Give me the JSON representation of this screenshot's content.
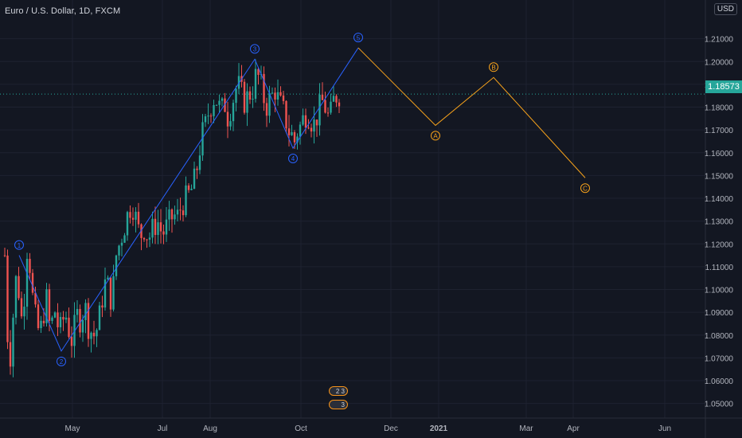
{
  "header": {
    "symbol_title": "Euro / U.S. Dollar, 1D, FXCM",
    "currency": "USD"
  },
  "price": {
    "last": "1.18573",
    "last_value": 1.18573
  },
  "events": {
    "icon1_label": "2 3",
    "icon2_label": "3"
  },
  "colors": {
    "background": "#131722",
    "grid": "#1e2230",
    "up": "#26a69a",
    "down": "#ef5350",
    "impulse_wave": "#2962ff",
    "corrective_wave": "#f7a21b",
    "axis_text": "#b2b5be"
  },
  "chart_data": {
    "type": "candlestick",
    "title": "Euro / U.S. Dollar, 1D, FXCM",
    "x_ticks": [
      "May",
      "Jul",
      "Aug",
      "Oct",
      "Dec",
      "2021",
      "Mar",
      "Apr",
      "Jun"
    ],
    "y_ticks": [
      "1.05000",
      "1.06000",
      "1.07000",
      "1.08000",
      "1.09000",
      "1.10000",
      "1.11000",
      "1.12000",
      "1.13000",
      "1.14000",
      "1.15000",
      "1.16000",
      "1.17000",
      "1.18000",
      "1.19000",
      "1.20000",
      "1.21000"
    ],
    "ylim": [
      1.045,
      1.22
    ],
    "last_price_line": 1.18573,
    "price_path": [
      [
        0,
        1.115
      ],
      [
        4,
        1.075
      ],
      [
        8,
        1.07
      ],
      [
        12,
        1.1
      ],
      [
        16,
        1.108
      ],
      [
        20,
        1.085
      ],
      [
        24,
        1.095
      ],
      [
        28,
        1.118
      ],
      [
        32,
        1.11
      ],
      [
        36,
        1.092
      ],
      [
        40,
        1.085
      ],
      [
        44,
        1.08
      ],
      [
        48,
        1.088
      ],
      [
        52,
        1.097
      ],
      [
        56,
        1.085
      ],
      [
        60,
        1.086
      ],
      [
        64,
        1.092
      ],
      [
        68,
        1.08
      ],
      [
        72,
        1.085
      ],
      [
        76,
        1.09
      ],
      [
        80,
        1.083
      ],
      [
        84,
        1.078
      ],
      [
        88,
        1.084
      ],
      [
        92,
        1.09
      ],
      [
        96,
        1.085
      ],
      [
        100,
        1.095
      ],
      [
        104,
        1.085
      ],
      [
        108,
        1.082
      ],
      [
        112,
        1.08
      ],
      [
        116,
        1.083
      ],
      [
        120,
        1.09
      ],
      [
        124,
        1.1
      ],
      [
        128,
        1.105
      ],
      [
        132,
        1.095
      ],
      [
        136,
        1.1
      ],
      [
        140,
        1.115
      ],
      [
        144,
        1.12
      ],
      [
        148,
        1.125
      ],
      [
        152,
        1.13
      ],
      [
        156,
        1.135
      ],
      [
        160,
        1.138
      ],
      [
        164,
        1.132
      ],
      [
        168,
        1.126
      ],
      [
        172,
        1.124
      ],
      [
        176,
        1.128
      ],
      [
        180,
        1.122
      ],
      [
        184,
        1.125
      ],
      [
        188,
        1.128
      ],
      [
        192,
        1.13
      ],
      [
        196,
        1.126
      ],
      [
        200,
        1.125
      ],
      [
        204,
        1.128
      ],
      [
        208,
        1.13
      ],
      [
        212,
        1.133
      ],
      [
        216,
        1.131
      ],
      [
        220,
        1.135
      ],
      [
        224,
        1.138
      ],
      [
        228,
        1.14
      ],
      [
        232,
        1.142
      ],
      [
        236,
        1.145
      ],
      [
        240,
        1.15
      ],
      [
        244,
        1.16
      ],
      [
        248,
        1.168
      ],
      [
        252,
        1.172
      ],
      [
        256,
        1.178
      ],
      [
        260,
        1.182
      ],
      [
        264,
        1.185
      ],
      [
        268,
        1.181
      ],
      [
        272,
        1.178
      ],
      [
        276,
        1.182
      ],
      [
        280,
        1.176
      ],
      [
        284,
        1.18
      ],
      [
        288,
        1.185
      ],
      [
        292,
        1.19
      ],
      [
        296,
        1.188
      ],
      [
        300,
        1.182
      ],
      [
        304,
        1.184
      ],
      [
        308,
        1.186
      ],
      [
        312,
        1.188
      ],
      [
        316,
        1.195
      ],
      [
        320,
        1.192
      ],
      [
        324,
        1.186
      ],
      [
        328,
        1.18
      ],
      [
        332,
        1.183
      ],
      [
        336,
        1.185
      ],
      [
        340,
        1.188
      ],
      [
        344,
        1.182
      ],
      [
        348,
        1.18
      ],
      [
        352,
        1.176
      ],
      [
        356,
        1.17
      ],
      [
        360,
        1.168
      ],
      [
        364,
        1.165
      ],
      [
        368,
        1.17
      ],
      [
        372,
        1.172
      ],
      [
        376,
        1.176
      ],
      [
        380,
        1.178
      ],
      [
        384,
        1.175
      ],
      [
        388,
        1.172
      ],
      [
        392,
        1.176
      ],
      [
        396,
        1.18
      ],
      [
        400,
        1.183
      ],
      [
        404,
        1.178
      ],
      [
        408,
        1.174
      ],
      [
        412,
        1.182
      ],
      [
        416,
        1.185
      ],
      [
        420,
        1.1857
      ]
    ],
    "impulse_wave": [
      {
        "label": "1",
        "x": 24,
        "y": 1.115
      },
      {
        "label": "2",
        "x": 77,
        "y": 1.073
      },
      {
        "label": "3",
        "x": 320,
        "y": 1.201
      },
      {
        "label": "4",
        "x": 368,
        "y": 1.162
      },
      {
        "label": "5",
        "x": 450,
        "y": 1.206
      }
    ],
    "corrective_wave": [
      {
        "label": "",
        "x": 450,
        "y": 1.206
      },
      {
        "label": "A",
        "x": 547,
        "y": 1.172
      },
      {
        "label": "B",
        "x": 620,
        "y": 1.193
      },
      {
        "label": "C",
        "x": 735,
        "y": 1.149
      }
    ]
  }
}
